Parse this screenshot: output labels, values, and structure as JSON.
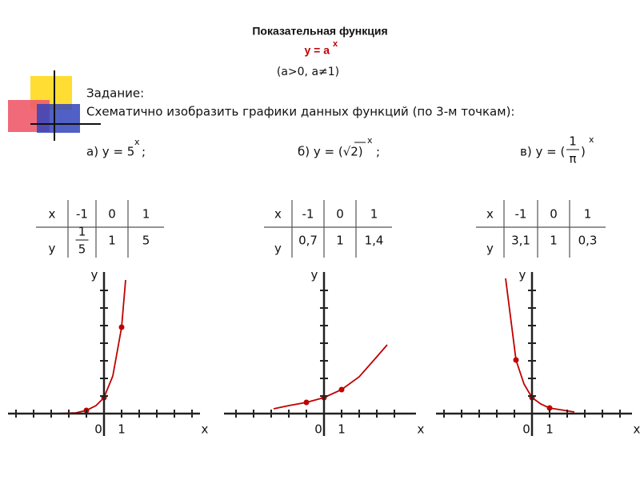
{
  "header": {
    "title": "Показательная функция",
    "formula": "y = a",
    "formula_exp": "x",
    "condition": "(a>0, a≠1)"
  },
  "task": {
    "label": "Задание:",
    "text": "Схематично изобразить графики данных функций (по 3-м точкам):"
  },
  "functions": [
    {
      "label": "а)  y = 5",
      "exp": "x",
      "tail": ";"
    },
    {
      "label": "б) y = (√2)",
      "exp": "x",
      "tail": ";"
    },
    {
      "label": "в) y = (",
      "frac_num": "1",
      "frac_den": "π",
      "close": ")",
      "exp": "x"
    }
  ],
  "tables": [
    {
      "header": [
        "x",
        "-1",
        "0",
        "1"
      ],
      "row": [
        "y",
        {
          "num": "1",
          "den": "5"
        },
        "1",
        "5"
      ]
    },
    {
      "header": [
        "x",
        "-1",
        "0",
        "1"
      ],
      "row": [
        "y",
        "0,7",
        "1",
        "1,4"
      ]
    },
    {
      "header": [
        "x",
        "-1",
        "0",
        "1"
      ],
      "row": [
        "y",
        "3,1",
        "1",
        "0,3"
      ]
    }
  ],
  "graphs": [
    {
      "y_label": "y",
      "x_label": "x",
      "origin": "0",
      "one": "1"
    },
    {
      "y_label": "y",
      "x_label": "x",
      "origin": "0",
      "one": "1"
    },
    {
      "y_label": "y",
      "x_label": "x",
      "origin": "0",
      "one": "1"
    }
  ]
}
